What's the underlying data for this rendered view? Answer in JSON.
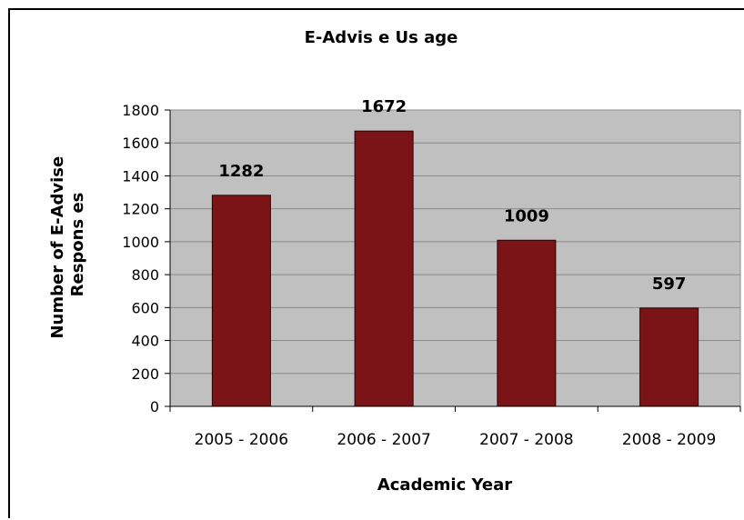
{
  "chart_data": {
    "type": "bar",
    "title": "E-Advis e Us age",
    "categories": [
      "2005 - 2006",
      "2006 - 2007",
      "2007 - 2008",
      "2008 - 2009"
    ],
    "values": [
      1282,
      1672,
      1009,
      597
    ],
    "xlabel": "Academic Year",
    "ylabel": [
      "Number of E-Advise",
      "Respons es"
    ],
    "ylim": [
      0,
      1800
    ],
    "yticks": [
      0,
      200,
      400,
      600,
      800,
      1000,
      1200,
      1400,
      1600,
      1800
    ],
    "grid": true,
    "legend": "none",
    "colors": {
      "bar": "#7a1416",
      "bar_border": "#2a0000",
      "plot_background": "#c0c0c0",
      "gridline": "#8a8a8a"
    }
  }
}
